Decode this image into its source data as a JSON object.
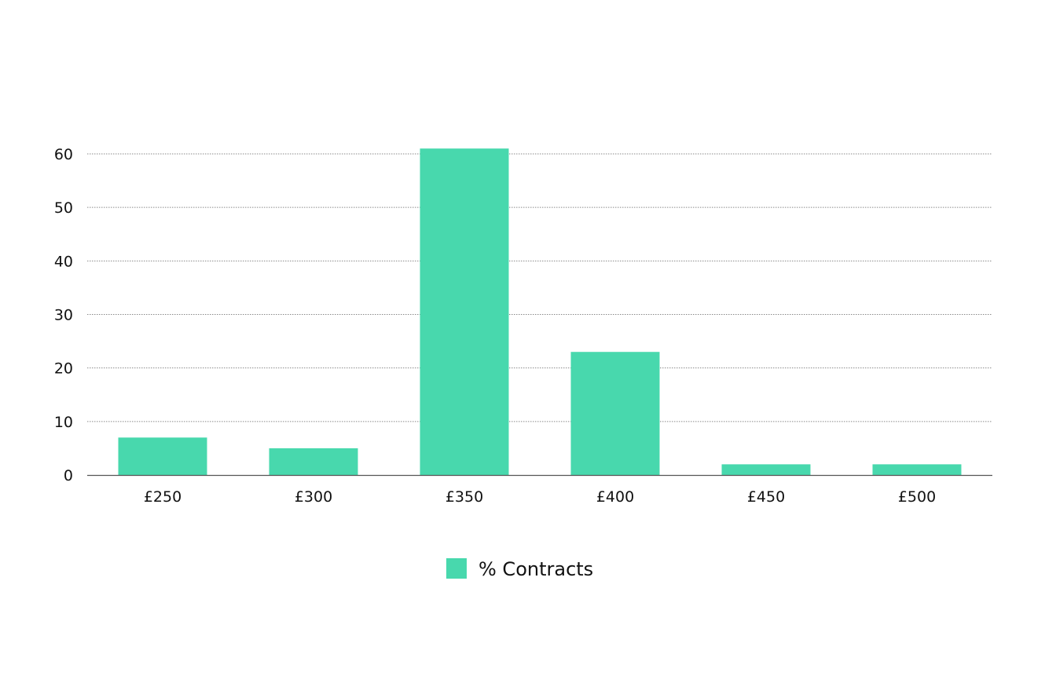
{
  "chart_data": {
    "type": "bar",
    "categories": [
      "£250",
      "£300",
      "£350",
      "£400",
      "£450",
      "£500"
    ],
    "series": [
      {
        "name": "% Contracts",
        "values": [
          7,
          5,
          61,
          23,
          2,
          2
        ]
      }
    ],
    "ylim": [
      0,
      60
    ],
    "yticks": [
      0,
      10,
      20,
      30,
      40,
      50,
      60
    ],
    "grid": true,
    "legend_position": "bottom-center",
    "colors": {
      "bar": "#48d8ad",
      "grid": "#8a8a8a",
      "axis": "#555555"
    }
  }
}
